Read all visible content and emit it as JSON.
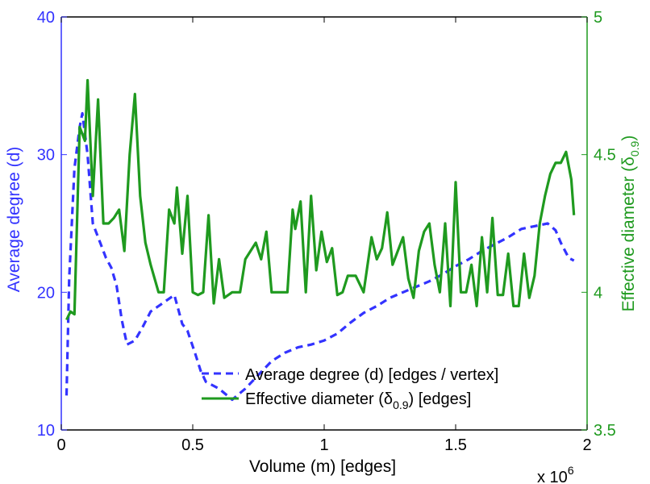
{
  "chart_data": {
    "type": "line",
    "title": "",
    "xlabel": "Volume (m) [edges]",
    "x_multiplier": "x 10",
    "x_multiplier_exp": "6",
    "xlim": [
      0,
      2
    ],
    "x_ticks": [
      {
        "value": 0,
        "label": "0"
      },
      {
        "value": 0.5,
        "label": "0.5"
      },
      {
        "value": 1,
        "label": "1"
      },
      {
        "value": 1.5,
        "label": "1.5"
      },
      {
        "value": 2,
        "label": "2"
      }
    ],
    "y_left": {
      "label": "Average degree (d)",
      "color": "#3333ff",
      "lim": [
        10,
        40
      ],
      "ticks": [
        {
          "value": 10,
          "label": "10"
        },
        {
          "value": 20,
          "label": "20"
        },
        {
          "value": 30,
          "label": "30"
        },
        {
          "value": 40,
          "label": "40"
        }
      ]
    },
    "y_right": {
      "label": "Effective diameter (δ",
      "label_sub": "0.9",
      "label_close": ")",
      "color": "#1f9a1f",
      "lim": [
        3.5,
        5
      ],
      "ticks": [
        {
          "value": 3.5,
          "label": "3.5"
        },
        {
          "value": 4,
          "label": "4"
        },
        {
          "value": 4.5,
          "label": "4.5"
        },
        {
          "value": 5,
          "label": "5"
        }
      ]
    },
    "legend": {
      "position": "bottom-right",
      "entries": [
        {
          "series": 0,
          "text": "Average degree (d) [edges / vertex]"
        },
        {
          "series": 1,
          "text": "Effective diameter (δ",
          "sub": "0.9",
          "after": ") [edges]"
        }
      ]
    },
    "series": [
      {
        "name": "Average degree (d) [edges / vertex]",
        "axis": "left",
        "color": "#3333ff",
        "style": "dashed",
        "x": [
          0.02,
          0.03,
          0.05,
          0.07,
          0.08,
          0.1,
          0.12,
          0.15,
          0.17,
          0.19,
          0.21,
          0.23,
          0.25,
          0.28,
          0.31,
          0.34,
          0.37,
          0.4,
          0.43,
          0.46,
          0.48,
          0.51,
          0.53,
          0.55,
          0.6,
          0.65,
          0.7,
          0.75,
          0.8,
          0.85,
          0.9,
          0.95,
          1.0,
          1.05,
          1.1,
          1.15,
          1.2,
          1.25,
          1.3,
          1.35,
          1.4,
          1.45,
          1.5,
          1.55,
          1.6,
          1.65,
          1.7,
          1.75,
          1.8,
          1.85,
          1.88,
          1.9,
          1.93,
          1.95
        ],
        "y": [
          12.5,
          21,
          29,
          32,
          33,
          30,
          25,
          23.5,
          22.5,
          21.8,
          20.5,
          18,
          16.2,
          16.5,
          17.5,
          18.6,
          19,
          19.4,
          19.8,
          17.7,
          17.2,
          15.5,
          14.3,
          13.5,
          13,
          12.2,
          13,
          14,
          15,
          15.6,
          16,
          16.2,
          16.5,
          17,
          17.8,
          18.5,
          19,
          19.6,
          20,
          20.4,
          20.8,
          21.3,
          21.9,
          22.4,
          23,
          23.5,
          24,
          24.6,
          24.8,
          25,
          24.5,
          23.6,
          22.5,
          22.3
        ]
      },
      {
        "name": "Effective diameter (δ0.9) [edges]",
        "axis": "right",
        "color": "#1f9a1f",
        "style": "solid",
        "x": [
          0.02,
          0.035,
          0.05,
          0.07,
          0.09,
          0.1,
          0.12,
          0.14,
          0.16,
          0.18,
          0.2,
          0.22,
          0.24,
          0.26,
          0.28,
          0.3,
          0.32,
          0.34,
          0.37,
          0.39,
          0.41,
          0.43,
          0.44,
          0.46,
          0.48,
          0.5,
          0.52,
          0.54,
          0.56,
          0.58,
          0.6,
          0.62,
          0.65,
          0.68,
          0.7,
          0.72,
          0.74,
          0.76,
          0.78,
          0.8,
          0.83,
          0.86,
          0.88,
          0.89,
          0.91,
          0.93,
          0.95,
          0.97,
          0.99,
          1.01,
          1.03,
          1.05,
          1.07,
          1.09,
          1.12,
          1.15,
          1.18,
          1.2,
          1.22,
          1.24,
          1.26,
          1.28,
          1.3,
          1.32,
          1.34,
          1.36,
          1.38,
          1.4,
          1.42,
          1.44,
          1.46,
          1.48,
          1.5,
          1.52,
          1.54,
          1.56,
          1.58,
          1.6,
          1.62,
          1.64,
          1.66,
          1.68,
          1.7,
          1.72,
          1.74,
          1.76,
          1.78,
          1.8,
          1.82,
          1.84,
          1.86,
          1.88,
          1.9,
          1.92,
          1.94,
          1.95
        ],
        "y": [
          3.9,
          3.93,
          3.92,
          4.6,
          4.55,
          4.77,
          4.35,
          4.7,
          4.25,
          4.25,
          4.27,
          4.3,
          4.15,
          4.5,
          4.72,
          4.35,
          4.18,
          4.1,
          4.0,
          4.0,
          4.3,
          4.25,
          4.38,
          4.14,
          4.35,
          4.0,
          3.99,
          4.0,
          4.28,
          3.96,
          4.12,
          3.98,
          4.0,
          4.0,
          4.12,
          4.15,
          4.18,
          4.12,
          4.22,
          4.0,
          4.0,
          4.0,
          4.3,
          4.23,
          4.33,
          4.0,
          4.35,
          4.08,
          4.22,
          4.11,
          4.16,
          3.99,
          4.0,
          4.06,
          4.06,
          4.0,
          4.2,
          4.12,
          4.16,
          4.29,
          4.1,
          4.15,
          4.2,
          4.05,
          3.98,
          4.15,
          4.22,
          4.25,
          4.1,
          4.0,
          4.25,
          3.95,
          4.4,
          4.0,
          4.0,
          4.1,
          3.95,
          4.2,
          4.0,
          4.27,
          3.99,
          3.99,
          4.14,
          3.95,
          3.95,
          4.14,
          3.98,
          4.06,
          4.25,
          4.35,
          4.43,
          4.47,
          4.47,
          4.51,
          4.41,
          4.28
        ]
      }
    ]
  }
}
